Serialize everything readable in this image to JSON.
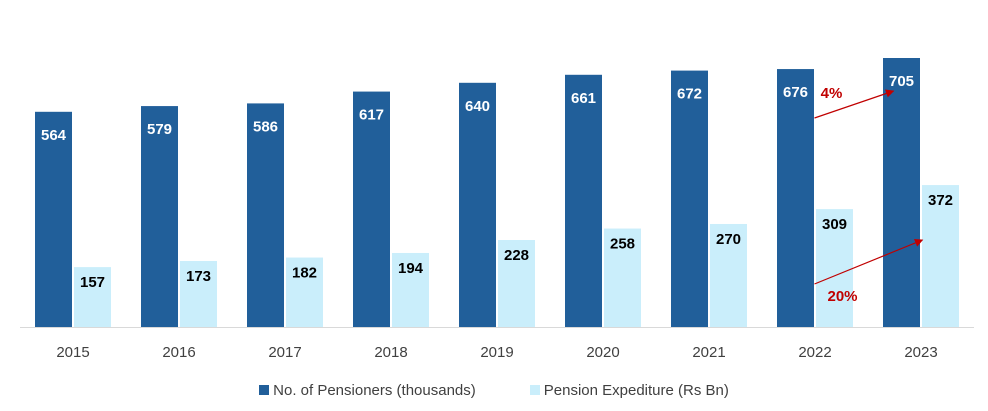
{
  "chart_data": {
    "type": "bar",
    "categories": [
      "2015",
      "2016",
      "2017",
      "2018",
      "2019",
      "2020",
      "2021",
      "2022",
      "2023"
    ],
    "series": [
      {
        "name": "No. of Pensioners (thousands)",
        "color": "#215F9A",
        "values": [
          564,
          579,
          586,
          617,
          640,
          661,
          672,
          676,
          705
        ],
        "label_color": "#FFFFFF"
      },
      {
        "name": "Pension Expediture (Rs Bn)",
        "color": "#CAEEFB",
        "values": [
          157,
          173,
          182,
          194,
          228,
          258,
          270,
          309,
          372
        ],
        "label_color": "#000000"
      }
    ],
    "annotations": [
      {
        "text": "4%",
        "from_category": "2022",
        "to_category": "2023",
        "series": "No. of Pensioners (thousands)",
        "color": "#C00000"
      },
      {
        "text": "20%",
        "from_category": "2022",
        "to_category": "2023",
        "series": "Pension Expediture (Rs Bn)",
        "color": "#C00000"
      }
    ],
    "grid": false,
    "legend_position": "bottom"
  }
}
